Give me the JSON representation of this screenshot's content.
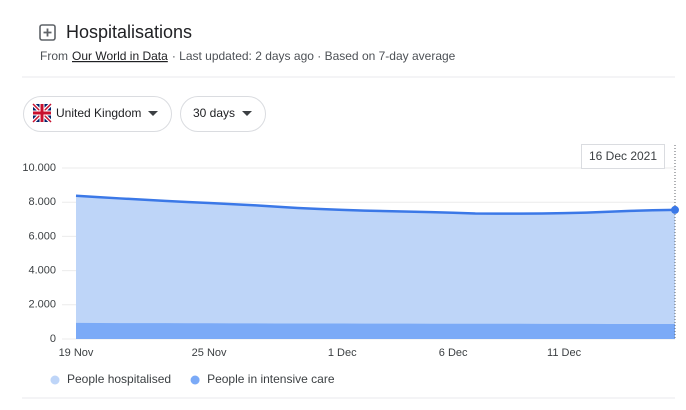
{
  "header": {
    "title": "Hospitalisations",
    "source_prefix": "From",
    "source_link": "Our World in Data",
    "meta": "· Last updated: 2 days ago · Based on 7-day average"
  },
  "controls": {
    "region": "United Kingdom",
    "period": "30 days"
  },
  "chart_data": {
    "type": "area",
    "tooltip": "16 Dec 2021",
    "categories": [
      "19 Nov",
      null,
      null,
      null,
      null,
      null,
      "25 Nov",
      null,
      null,
      null,
      null,
      null,
      "1 Dec",
      null,
      null,
      null,
      null,
      "6 Dec",
      null,
      null,
      null,
      null,
      "11 Dec",
      null,
      null,
      null,
      null,
      null
    ],
    "series": [
      {
        "name": "People hospitalised",
        "color": "#bed5f8",
        "line_color": "#3b78e7",
        "values": [
          8380,
          8300,
          8220,
          8150,
          8080,
          8010,
          7950,
          7890,
          7820,
          7740,
          7660,
          7600,
          7550,
          7510,
          7480,
          7450,
          7420,
          7380,
          7340,
          7330,
          7330,
          7340,
          7360,
          7390,
          7440,
          7490,
          7530,
          7550
        ]
      },
      {
        "name": "People in intensive care",
        "color": "#7baaf7",
        "values": [
          940,
          935,
          930,
          930,
          925,
          920,
          920,
          915,
          915,
          910,
          910,
          905,
          905,
          900,
          900,
          900,
          895,
          895,
          890,
          890,
          890,
          885,
          885,
          885,
          880,
          880,
          880,
          880
        ]
      }
    ],
    "ylim": [
      0,
      10000
    ],
    "yticks": [
      0,
      {
        "value": 2000,
        "label": "2.000"
      },
      {
        "value": 4000,
        "label": "4.000"
      },
      {
        "value": 6000,
        "label": "6.000"
      },
      {
        "value": 8000,
        "label": "8.000"
      },
      {
        "value": 10000,
        "label": "10.000"
      }
    ],
    "grid": true
  }
}
